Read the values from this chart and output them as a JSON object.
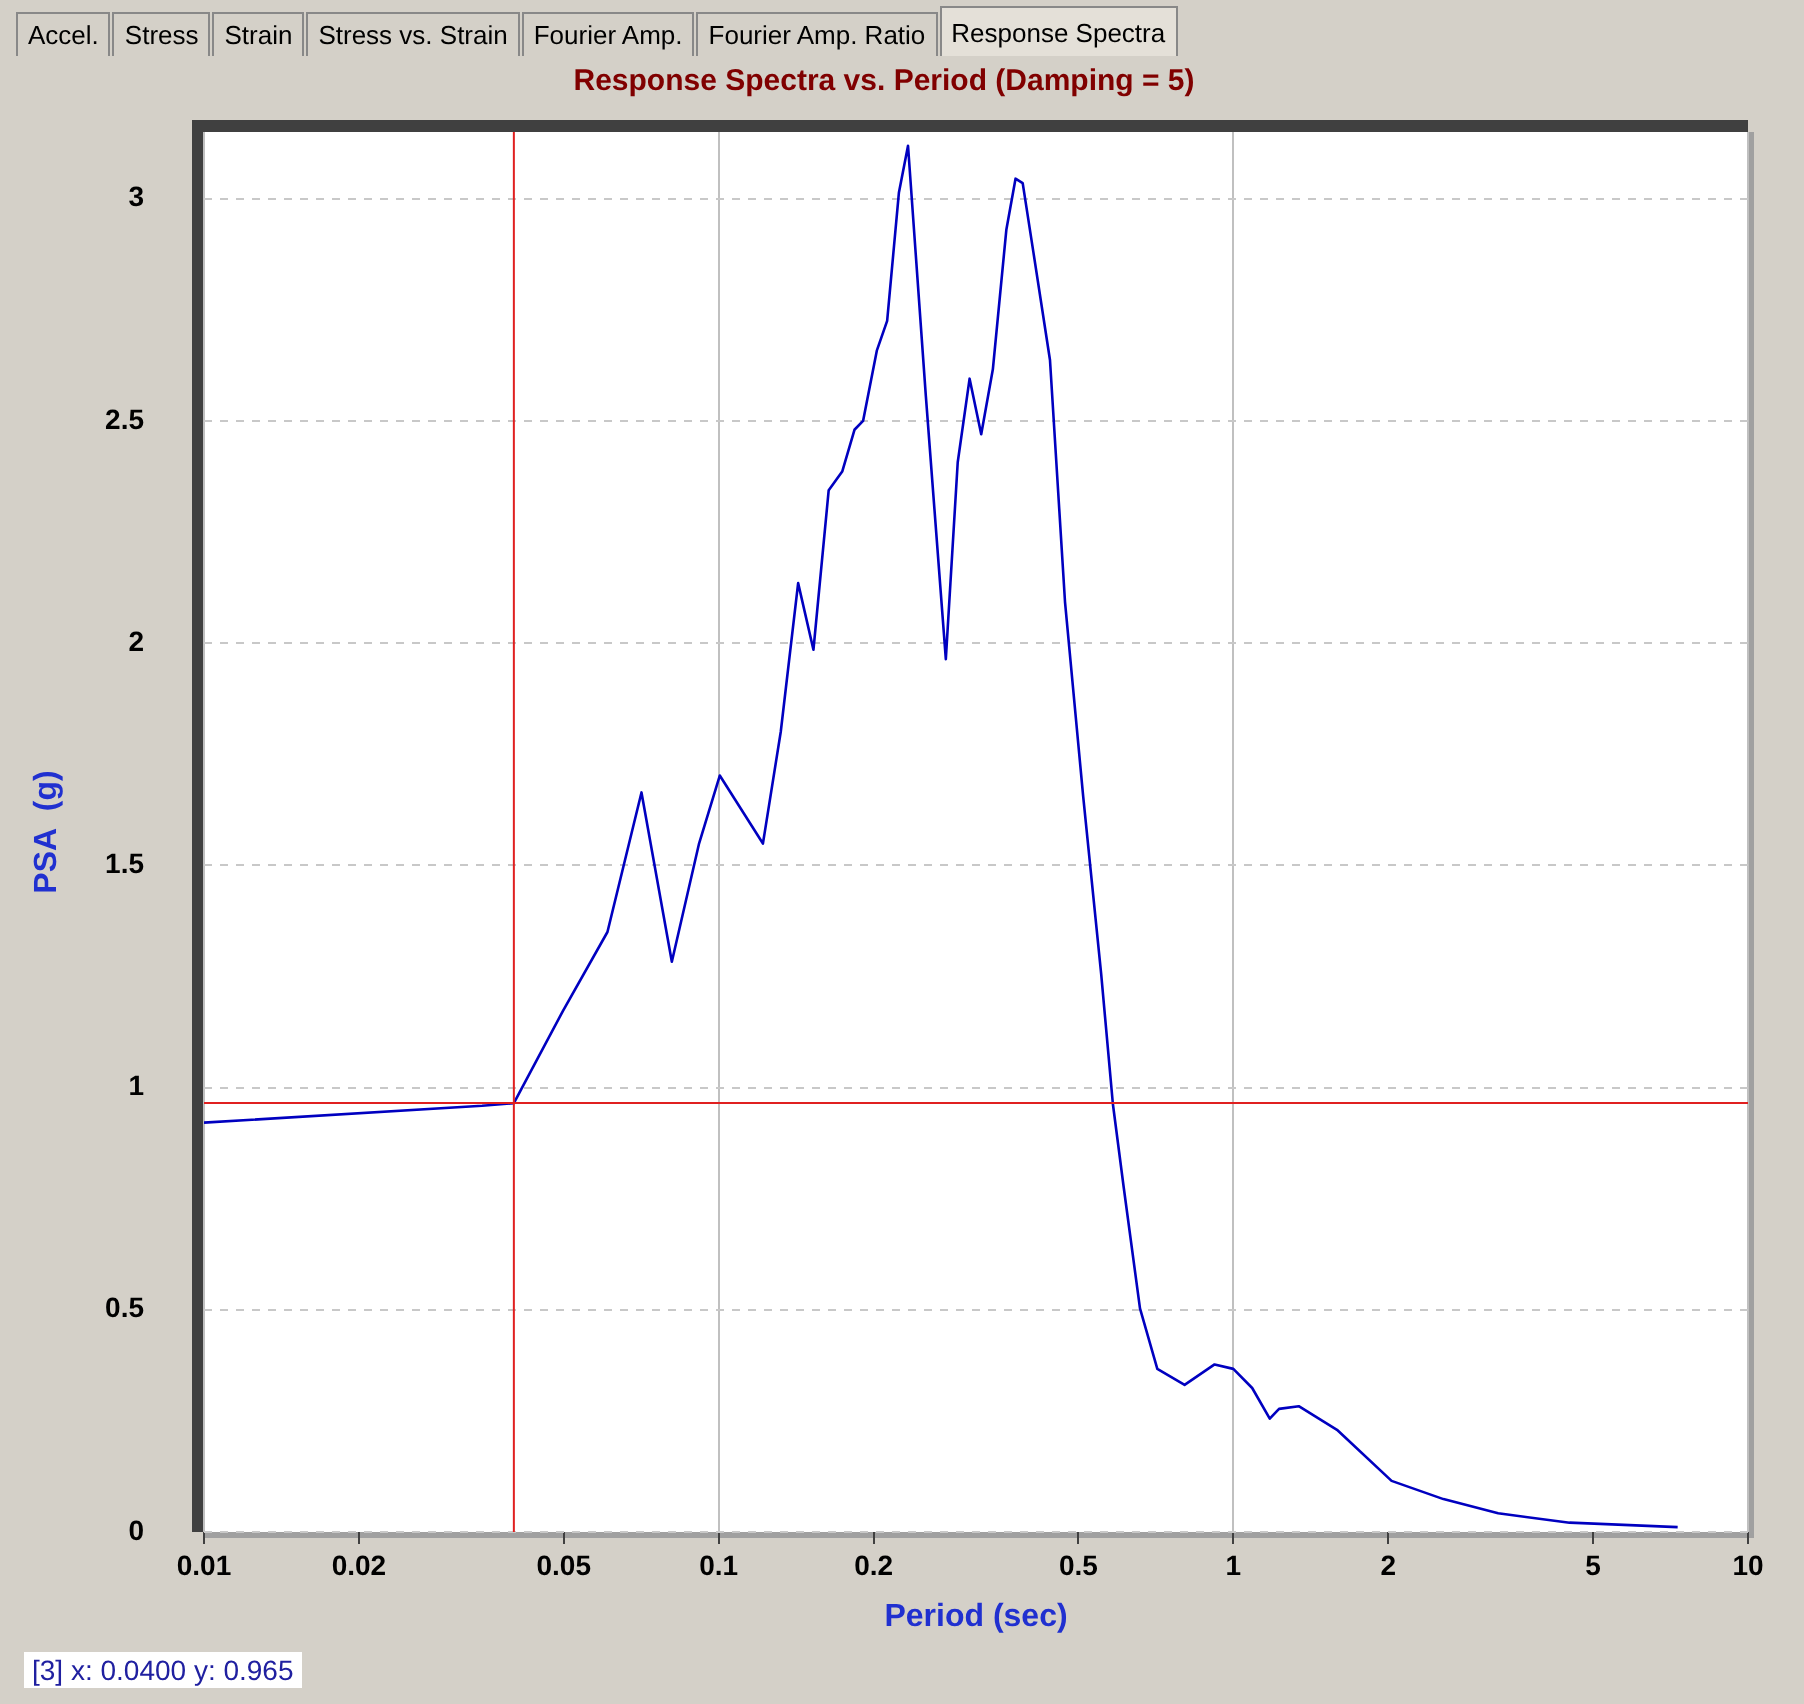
{
  "chart_data": {
    "type": "line",
    "title": "Response Spectra vs. Period (Damping = 5)",
    "xlabel": "Period (sec)",
    "ylabel": "PSA  (g)",
    "log": "x",
    "xlim": [
      0.01,
      10
    ],
    "xticks": [
      0.01,
      0.02,
      0.05,
      0.1,
      0.2,
      0.5,
      1,
      2,
      5,
      10
    ],
    "ylim": [
      0,
      3.15
    ],
    "yticks": [
      0,
      0.5,
      1,
      1.5,
      2,
      2.5,
      3
    ],
    "grid": true,
    "legend": false,
    "marker": "none",
    "line_style": "solid",
    "series": [
      {
        "color": "#0000c0",
        "x": [
          0.01,
          0.0347,
          0.04,
          0.0498,
          0.0608,
          0.0708,
          0.0811,
          0.0916,
          0.1005,
          0.1219,
          0.132,
          0.1427,
          0.1528,
          0.1636,
          0.1738,
          0.1836,
          0.1908,
          0.2029,
          0.2125,
          0.224,
          0.2333,
          0.2527,
          0.2763,
          0.2914,
          0.3073,
          0.3237,
          0.341,
          0.3622,
          0.3774,
          0.3897,
          0.409,
          0.4403,
          0.4709,
          0.5108,
          0.5536,
          0.5834,
          0.6126,
          0.6586,
          0.7117,
          0.8041,
          0.9195,
          1.0,
          1.088,
          1.177,
          1.227,
          1.34,
          1.59,
          2.03,
          2.56,
          3.27,
          4.5,
          7.3
        ],
        "values": [
          0.921,
          0.959,
          0.965,
          1.172,
          1.35,
          1.664,
          1.283,
          1.549,
          1.702,
          1.549,
          1.8,
          2.135,
          1.985,
          2.344,
          2.386,
          2.48,
          2.5,
          2.658,
          2.725,
          3.014,
          3.119,
          2.555,
          1.964,
          2.407,
          2.595,
          2.47,
          2.616,
          2.93,
          3.045,
          3.035,
          2.878,
          2.637,
          2.093,
          1.655,
          1.256,
          0.963,
          0.774,
          0.503,
          0.367,
          0.331,
          0.377,
          0.367,
          0.324,
          0.255,
          0.277,
          0.283,
          0.23,
          0.115,
          0.074,
          0.042,
          0.021,
          0.011
        ]
      }
    ],
    "ref_lines": [
      {
        "axis": "x",
        "value": 0.04,
        "color": "#e02020"
      },
      {
        "axis": "y",
        "value": 0.965,
        "color": "#e02020"
      }
    ],
    "annotations": [
      "Accel.",
      "Stress",
      "Strain",
      "Stress vs. Strain",
      "Fourier Amp.",
      "Fourier Amp. Ratio",
      "Response Spectra",
      "[3] x: 0.0400  y: 0.965"
    ]
  }
}
